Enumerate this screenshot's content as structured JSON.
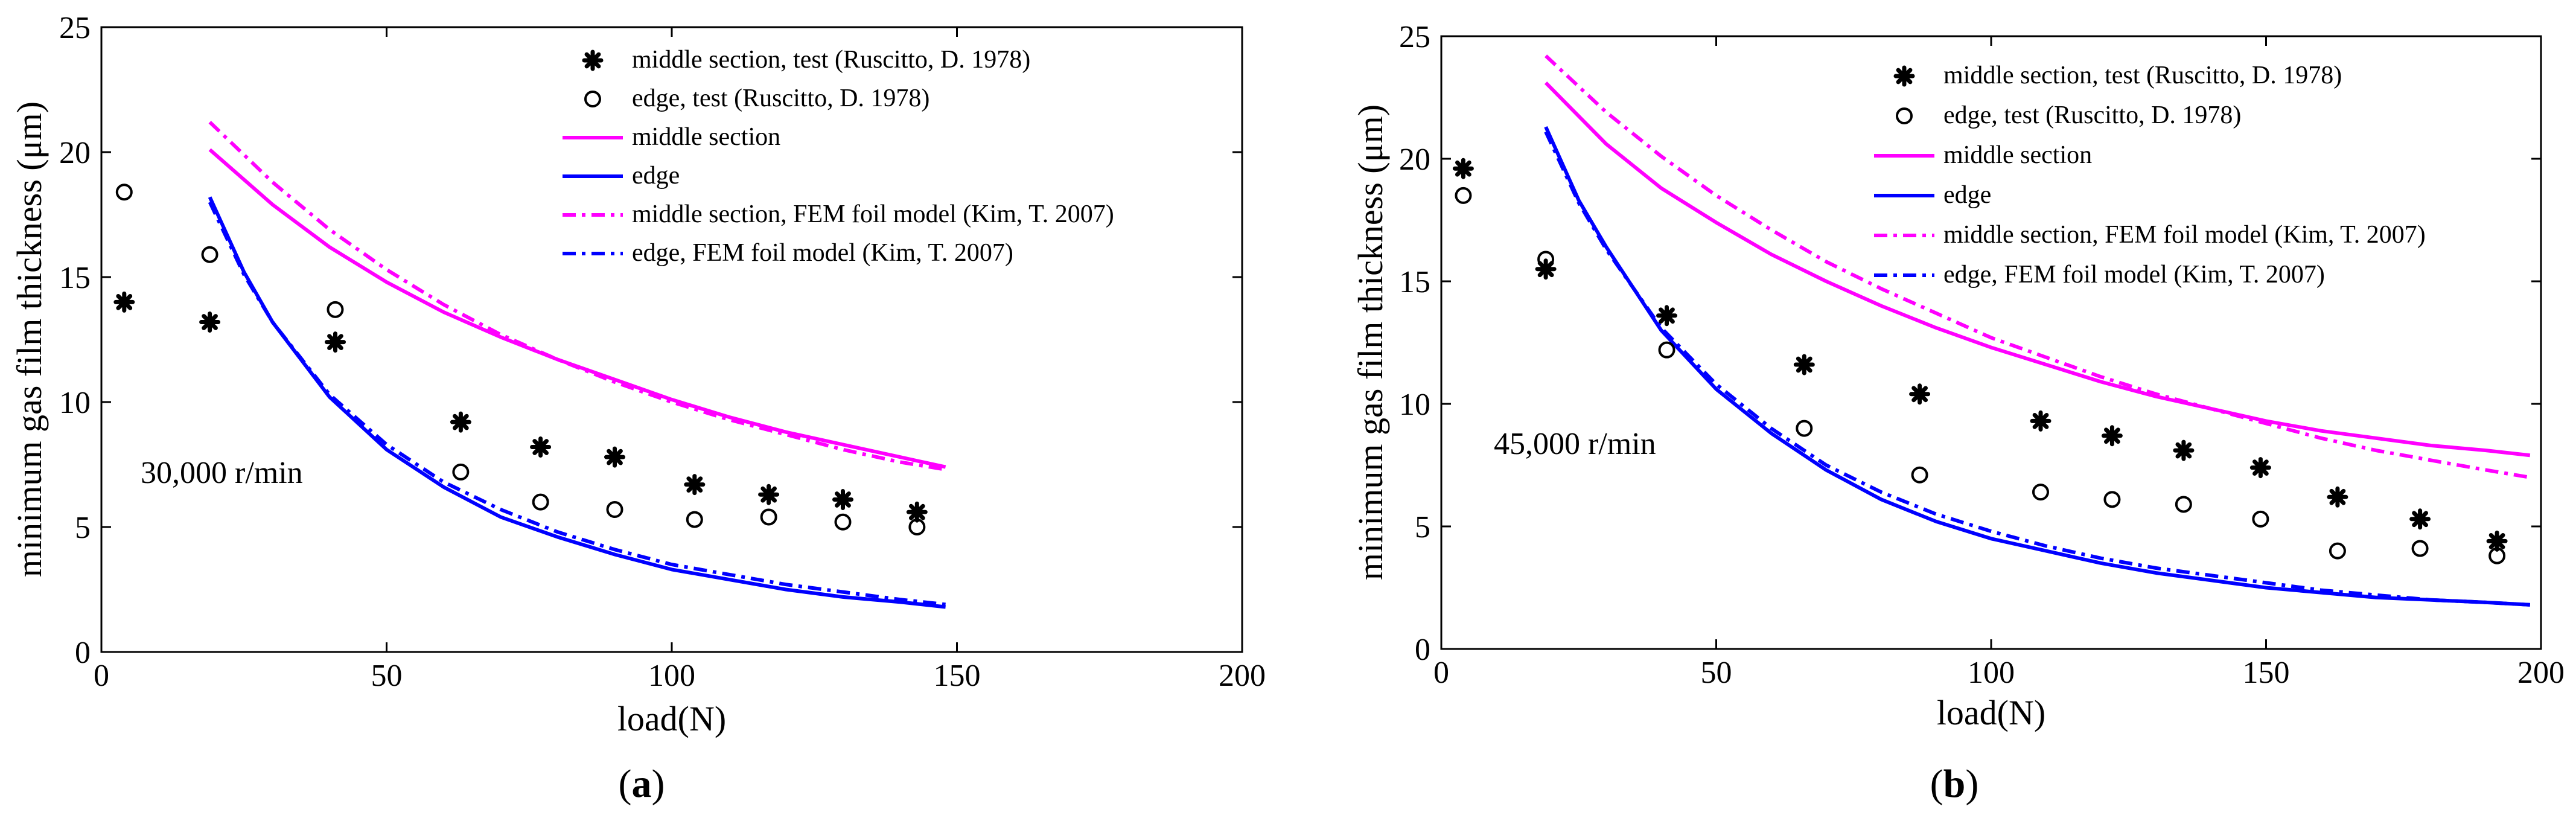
{
  "chart_data": [
    {
      "panel": "a",
      "caption": "(a)",
      "caption_open": "(",
      "caption_letter": "a",
      "caption_close": ")",
      "type": "line",
      "xlabel": "load(N)",
      "ylabel": "minimum gas film thickness (μm)",
      "xlim": [
        0,
        200
      ],
      "ylim": [
        0,
        25
      ],
      "xticks": [
        0,
        50,
        100,
        150,
        200
      ],
      "yticks": [
        0,
        5,
        10,
        15,
        20,
        25
      ],
      "annotation": "30,000 r/min",
      "legend_position": "top-right",
      "series": [
        {
          "name": "middle section, test (Ruscitto, D. 1978)",
          "kind": "marker-star",
          "color": "#000000",
          "x": [
            4,
            19,
            41,
            63,
            77,
            90,
            104,
            117,
            130,
            143
          ],
          "y": [
            14.0,
            13.2,
            12.4,
            9.2,
            8.2,
            7.8,
            6.7,
            6.3,
            6.1,
            5.6
          ]
        },
        {
          "name": "edge, test (Ruscitto, D. 1978)",
          "kind": "marker-circle",
          "color": "#000000",
          "x": [
            4,
            19,
            41,
            63,
            77,
            90,
            104,
            117,
            130,
            143
          ],
          "y": [
            18.4,
            15.9,
            13.7,
            7.2,
            6.0,
            5.7,
            5.3,
            5.4,
            5.2,
            5.0
          ]
        },
        {
          "name": "middle section",
          "kind": "line-solid",
          "color": "#ff00ff",
          "x": [
            19,
            30,
            40,
            50,
            60,
            70,
            80,
            90,
            100,
            110,
            120,
            130,
            140,
            148
          ],
          "y": [
            20.1,
            17.9,
            16.2,
            14.8,
            13.6,
            12.6,
            11.7,
            10.9,
            10.1,
            9.4,
            8.8,
            8.3,
            7.8,
            7.4
          ]
        },
        {
          "name": "edge",
          "kind": "line-solid",
          "color": "#0000ff",
          "x": [
            19,
            25,
            30,
            40,
            50,
            60,
            70,
            80,
            90,
            100,
            110,
            120,
            130,
            140,
            148
          ],
          "y": [
            18.2,
            15.2,
            13.2,
            10.2,
            8.1,
            6.6,
            5.4,
            4.6,
            3.9,
            3.3,
            2.9,
            2.5,
            2.2,
            2.0,
            1.8
          ]
        },
        {
          "name": "middle section, FEM foil model (Kim, T. 2007)",
          "kind": "line-dashdot",
          "color": "#ff00ff",
          "x": [
            19,
            30,
            40,
            50,
            60,
            70,
            80,
            90,
            100,
            110,
            120,
            130,
            140,
            148
          ],
          "y": [
            21.2,
            18.8,
            16.9,
            15.3,
            13.9,
            12.7,
            11.7,
            10.8,
            10.0,
            9.3,
            8.7,
            8.1,
            7.6,
            7.3
          ]
        },
        {
          "name": "edge, FEM foil model (Kim, T. 2007)",
          "kind": "line-dashdot",
          "color": "#0000ff",
          "x": [
            19,
            25,
            30,
            40,
            50,
            60,
            70,
            80,
            90,
            100,
            110,
            120,
            130,
            140,
            148
          ],
          "y": [
            18.0,
            15.1,
            13.2,
            10.3,
            8.3,
            6.8,
            5.7,
            4.8,
            4.1,
            3.5,
            3.1,
            2.7,
            2.4,
            2.1,
            1.9
          ]
        }
      ]
    },
    {
      "panel": "b",
      "caption": "(b)",
      "caption_open": "(",
      "caption_letter": "b",
      "caption_close": ")",
      "type": "line",
      "xlabel": "load(N)",
      "ylabel": "minimum gas film thickness (μm)",
      "xlim": [
        0,
        200
      ],
      "ylim": [
        0,
        25
      ],
      "xticks": [
        0,
        50,
        100,
        150,
        200
      ],
      "yticks": [
        0,
        5,
        10,
        15,
        20,
        25
      ],
      "annotation": "45,000 r/min",
      "legend_position": "top-right",
      "series": [
        {
          "name": "middle section, test (Ruscitto, D. 1978)",
          "kind": "marker-star",
          "color": "#000000",
          "x": [
            4,
            19,
            41,
            66,
            87,
            109,
            122,
            135,
            149,
            163,
            178,
            192
          ],
          "y": [
            19.6,
            15.5,
            13.6,
            11.6,
            10.4,
            9.3,
            8.7,
            8.1,
            7.4,
            6.2,
            5.3,
            4.4
          ]
        },
        {
          "name": "edge, test (Ruscitto, D. 1978)",
          "kind": "marker-circle",
          "color": "#000000",
          "x": [
            4,
            19,
            41,
            66,
            87,
            109,
            122,
            135,
            149,
            163,
            178,
            192
          ],
          "y": [
            18.5,
            15.9,
            12.2,
            9.0,
            7.1,
            6.4,
            6.1,
            5.9,
            5.3,
            4.0,
            4.1,
            3.8
          ]
        },
        {
          "name": "middle section",
          "kind": "line-solid",
          "color": "#ff00ff",
          "x": [
            19,
            30,
            40,
            50,
            60,
            70,
            80,
            90,
            100,
            110,
            120,
            130,
            140,
            150,
            160,
            170,
            180,
            190,
            198
          ],
          "y": [
            23.1,
            20.6,
            18.8,
            17.4,
            16.1,
            15.0,
            14.0,
            13.1,
            12.3,
            11.6,
            10.9,
            10.3,
            9.8,
            9.3,
            8.9,
            8.6,
            8.3,
            8.1,
            7.9
          ]
        },
        {
          "name": "edge",
          "kind": "line-solid",
          "color": "#0000ff",
          "x": [
            19,
            25,
            30,
            40,
            50,
            60,
            70,
            80,
            90,
            100,
            110,
            120,
            130,
            140,
            150,
            160,
            170,
            180,
            190,
            198
          ],
          "y": [
            21.3,
            18.3,
            16.4,
            13.0,
            10.6,
            8.8,
            7.3,
            6.1,
            5.2,
            4.5,
            4.0,
            3.5,
            3.1,
            2.8,
            2.5,
            2.3,
            2.1,
            2.0,
            1.9,
            1.8
          ]
        },
        {
          "name": "middle section, FEM foil model (Kim, T. 2007)",
          "kind": "line-dashdot",
          "color": "#ff00ff",
          "x": [
            19,
            30,
            40,
            50,
            60,
            70,
            80,
            90,
            100,
            110,
            120,
            130,
            140,
            150,
            160,
            170,
            180,
            190,
            198
          ],
          "y": [
            24.2,
            21.9,
            20.1,
            18.5,
            17.1,
            15.8,
            14.7,
            13.7,
            12.7,
            11.9,
            11.1,
            10.4,
            9.8,
            9.2,
            8.6,
            8.1,
            7.7,
            7.3,
            7.0
          ]
        },
        {
          "name": "edge, FEM foil model (Kim, T. 2007)",
          "kind": "line-dashdot",
          "color": "#0000ff",
          "x": [
            19,
            25,
            30,
            40,
            50,
            60,
            70,
            80,
            90,
            100,
            110,
            120,
            130,
            140,
            150,
            160,
            170,
            180,
            190,
            198
          ],
          "y": [
            21.1,
            18.2,
            16.3,
            13.1,
            10.8,
            9.0,
            7.5,
            6.4,
            5.5,
            4.8,
            4.2,
            3.7,
            3.3,
            3.0,
            2.7,
            2.4,
            2.2,
            2.0,
            1.9,
            1.8
          ]
        }
      ]
    }
  ]
}
